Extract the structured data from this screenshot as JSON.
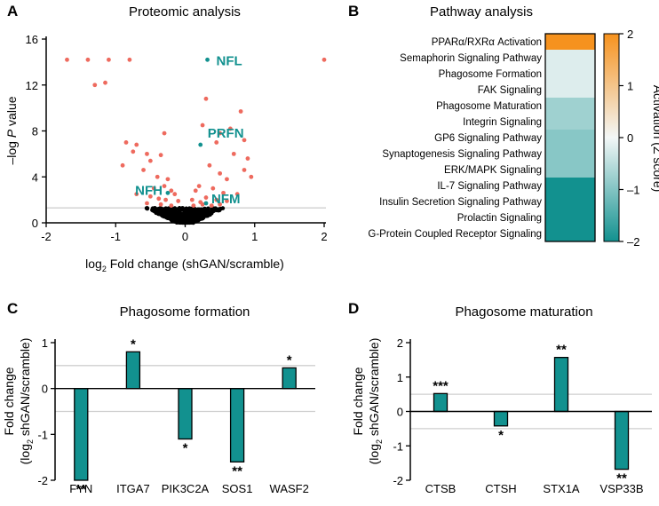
{
  "chart_data": [
    {
      "panel": "A",
      "type": "scatter",
      "title": "Proteomic analysis",
      "xlabel_prefix": "log",
      "xlabel_sub": "2",
      "xlabel_suffix": " Fold change (shGAN/scramble)",
      "ylabel_prefix": "–log ",
      "ylabel_italic": "P",
      "ylabel_suffix": " value",
      "xlim": [
        -2,
        2
      ],
      "ylim": [
        0,
        16
      ],
      "xticks": [
        "-2",
        "-1",
        "0",
        "1",
        "2"
      ],
      "yticks": [
        "0",
        "4",
        "8",
        "12",
        "16"
      ],
      "threshold": 1.3,
      "colors": {
        "significant": "#ee6a5e",
        "nonsignificant": "#000000",
        "labeled": "#12918f",
        "threshold": "#cfcfcf"
      },
      "significant_points": [
        [
          -1.7,
          14.2
        ],
        [
          -1.4,
          14.2
        ],
        [
          -1.1,
          14.2
        ],
        [
          -0.8,
          14.2
        ],
        [
          2.0,
          14.2
        ],
        [
          -1.3,
          12.0
        ],
        [
          -1.15,
          12.2
        ],
        [
          0.3,
          10.8
        ],
        [
          0.8,
          9.7
        ],
        [
          0.25,
          8.5
        ],
        [
          0.65,
          8.2
        ],
        [
          0.5,
          7.8
        ],
        [
          -0.3,
          7.8
        ],
        [
          -0.85,
          7.0
        ],
        [
          -0.7,
          6.8
        ],
        [
          0.45,
          7.0
        ],
        [
          0.85,
          7.2
        ],
        [
          -0.75,
          6.2
        ],
        [
          -0.55,
          6.0
        ],
        [
          -0.35,
          5.9
        ],
        [
          -0.5,
          5.4
        ],
        [
          0.7,
          6.0
        ],
        [
          0.9,
          5.6
        ],
        [
          -0.9,
          5.0
        ],
        [
          -0.6,
          4.6
        ],
        [
          0.35,
          5.0
        ],
        [
          0.85,
          4.6
        ],
        [
          -0.4,
          4.0
        ],
        [
          -0.25,
          3.8
        ],
        [
          0.6,
          3.8
        ],
        [
          0.5,
          4.3
        ],
        [
          0.95,
          4.0
        ],
        [
          -0.3,
          3.2
        ],
        [
          -0.45,
          3.0
        ],
        [
          -0.2,
          2.8
        ],
        [
          -0.15,
          2.5
        ],
        [
          0.15,
          2.8
        ],
        [
          0.2,
          3.2
        ],
        [
          0.4,
          3.0
        ],
        [
          0.55,
          2.6
        ],
        [
          -0.5,
          2.3
        ],
        [
          -0.38,
          2.1
        ],
        [
          -0.28,
          2.0
        ],
        [
          -0.1,
          1.9
        ],
        [
          0.1,
          2.0
        ],
        [
          0.22,
          1.8
        ],
        [
          0.3,
          2.2
        ],
        [
          0.45,
          2.0
        ],
        [
          0.6,
          1.9
        ],
        [
          -0.55,
          1.7
        ],
        [
          -0.35,
          1.6
        ],
        [
          -0.2,
          1.5
        ],
        [
          0.12,
          1.5
        ],
        [
          0.25,
          1.6
        ],
        [
          0.38,
          1.5
        ],
        [
          0.5,
          1.6
        ],
        [
          -0.7,
          2.5
        ],
        [
          0.75,
          2.5
        ]
      ],
      "labeled_points": [
        {
          "name": "NFL",
          "x": 0.32,
          "y": 14.2
        },
        {
          "name": "PRFN",
          "x": 0.22,
          "y": 6.8
        },
        {
          "name": "NFH",
          "x": -0.25,
          "y": 2.6
        },
        {
          "name": "NFM",
          "x": 0.3,
          "y": 1.7
        }
      ]
    },
    {
      "panel": "B",
      "type": "heatmap",
      "title": "Pathway analysis",
      "colorbar_label": "Activation (Z score)",
      "colorbar_ticks": [
        "2",
        "1",
        "0",
        "–1",
        "–2"
      ],
      "zlim": [
        -2,
        2
      ],
      "colors": {
        "low": "#12918f",
        "mid": "#f3f7f7",
        "high": "#f6921e"
      },
      "pathways": [
        {
          "name": "PPARα/RXRα Activation",
          "z": 2.0
        },
        {
          "name": "Semaphorin Signaling Pathway",
          "z": -0.2
        },
        {
          "name": "Phagosome Formation",
          "z": -0.2
        },
        {
          "name": "FAK Signaling",
          "z": -0.2
        },
        {
          "name": "Phagosome Maturation",
          "z": -0.75
        },
        {
          "name": "Integrin Signaling",
          "z": -0.75
        },
        {
          "name": "GP6 Signaling Pathway",
          "z": -0.95
        },
        {
          "name": "Synaptogenesis Signaling Pathway",
          "z": -0.95
        },
        {
          "name": "ERK/MAPK Signaling",
          "z": -0.95
        },
        {
          "name": "IL-7 Signaling Pathway",
          "z": -2.0
        },
        {
          "name": "Insulin Secretion Signaling Pathway",
          "z": -2.0
        },
        {
          "name": "Prolactin Signaling",
          "z": -2.0
        },
        {
          "name": "G-Protein Coupled Receptor Signaling",
          "z": -2.0
        }
      ]
    },
    {
      "panel": "C",
      "type": "bar",
      "title": "Phagosome formation",
      "ylabel_line1": "Fold change",
      "ylabel_line2_prefix": "(log",
      "ylabel_line2_sub": "2",
      "ylabel_line2_suffix": " shGAN/scramble)",
      "ylim": [
        -2,
        1
      ],
      "yticks": [
        "1",
        "0",
        "-1",
        "-2"
      ],
      "threshold": 0.5,
      "colors": {
        "bar": "#12918f",
        "threshold": "#cfcfcf"
      },
      "categories": [
        "FYN",
        "ITGA7",
        "PIK3C2A",
        "SOS1",
        "WASF2"
      ],
      "values": [
        -2.0,
        0.8,
        -1.1,
        -1.6,
        0.45
      ],
      "significance": [
        "**",
        "*",
        "*",
        "**",
        "*"
      ]
    },
    {
      "panel": "D",
      "type": "bar",
      "title": "Phagosome maturation",
      "ylabel_line1": "Fold change",
      "ylabel_line2_prefix": "(log",
      "ylabel_line2_sub": "2",
      "ylabel_line2_suffix": " shGAN/scramble)",
      "ylim": [
        -2,
        2
      ],
      "yticks": [
        "2",
        "1",
        "0",
        "-1",
        "-2"
      ],
      "threshold": 0.5,
      "colors": {
        "bar": "#12918f",
        "threshold": "#cfcfcf"
      },
      "categories": [
        "CTSB",
        "CTSH",
        "STX1A",
        "VSP33B"
      ],
      "values": [
        0.52,
        -0.42,
        1.57,
        -1.68
      ],
      "significance": [
        "***",
        "*",
        "**",
        "**"
      ]
    }
  ]
}
